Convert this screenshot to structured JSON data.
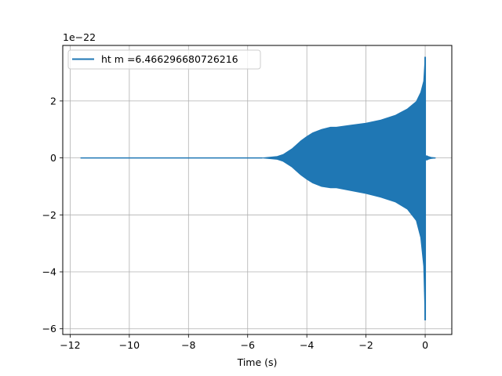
{
  "chart_data": {
    "type": "line",
    "title": "",
    "xlabel": "Time (s)",
    "ylabel": "",
    "offset_label": "1e−22",
    "xlim": [
      -12.25,
      0.9
    ],
    "ylim": [
      -6.2,
      3.95
    ],
    "xticks": [
      -12,
      -10,
      -8,
      -6,
      -4,
      -2,
      0
    ],
    "xtick_labels": [
      "−12",
      "−10",
      "−8",
      "−6",
      "−4",
      "−2",
      "0"
    ],
    "yticks": [
      -6,
      -4,
      -2,
      0,
      2
    ],
    "ytick_labels": [
      "−6",
      "−4",
      "−2",
      "0",
      "2"
    ],
    "grid": true,
    "legend_position": "upper-left",
    "series": [
      {
        "name": "ht m =6.466296680726216",
        "color": "#1f77b4",
        "signal_start": -11.65,
        "signal_end": 0.35,
        "envelope": {
          "t": [
            -5.5,
            -5.0,
            -4.8,
            -4.5,
            -4.2,
            -4.0,
            -3.8,
            -3.5,
            -3.2,
            -3.0,
            -2.5,
            -2.0,
            -1.5,
            -1.0,
            -0.6,
            -0.3,
            -0.15,
            -0.05,
            0.0
          ],
          "upper": [
            0.0,
            0.05,
            0.12,
            0.32,
            0.6,
            0.75,
            0.88,
            1.0,
            1.08,
            1.08,
            1.15,
            1.22,
            1.33,
            1.5,
            1.72,
            1.98,
            2.3,
            2.7,
            3.55
          ],
          "lower": [
            0.0,
            -0.05,
            -0.12,
            -0.32,
            -0.6,
            -0.75,
            -0.88,
            -1.0,
            -1.05,
            -1.05,
            -1.15,
            -1.25,
            -1.38,
            -1.55,
            -1.8,
            -2.2,
            -2.8,
            -3.8,
            -5.7
          ]
        },
        "ringdown": {
          "t": [
            0.0,
            0.05,
            0.1,
            0.2,
            0.35
          ],
          "amplitude": [
            0.0,
            0.08,
            0.05,
            0.02,
            0.0
          ]
        }
      }
    ]
  }
}
